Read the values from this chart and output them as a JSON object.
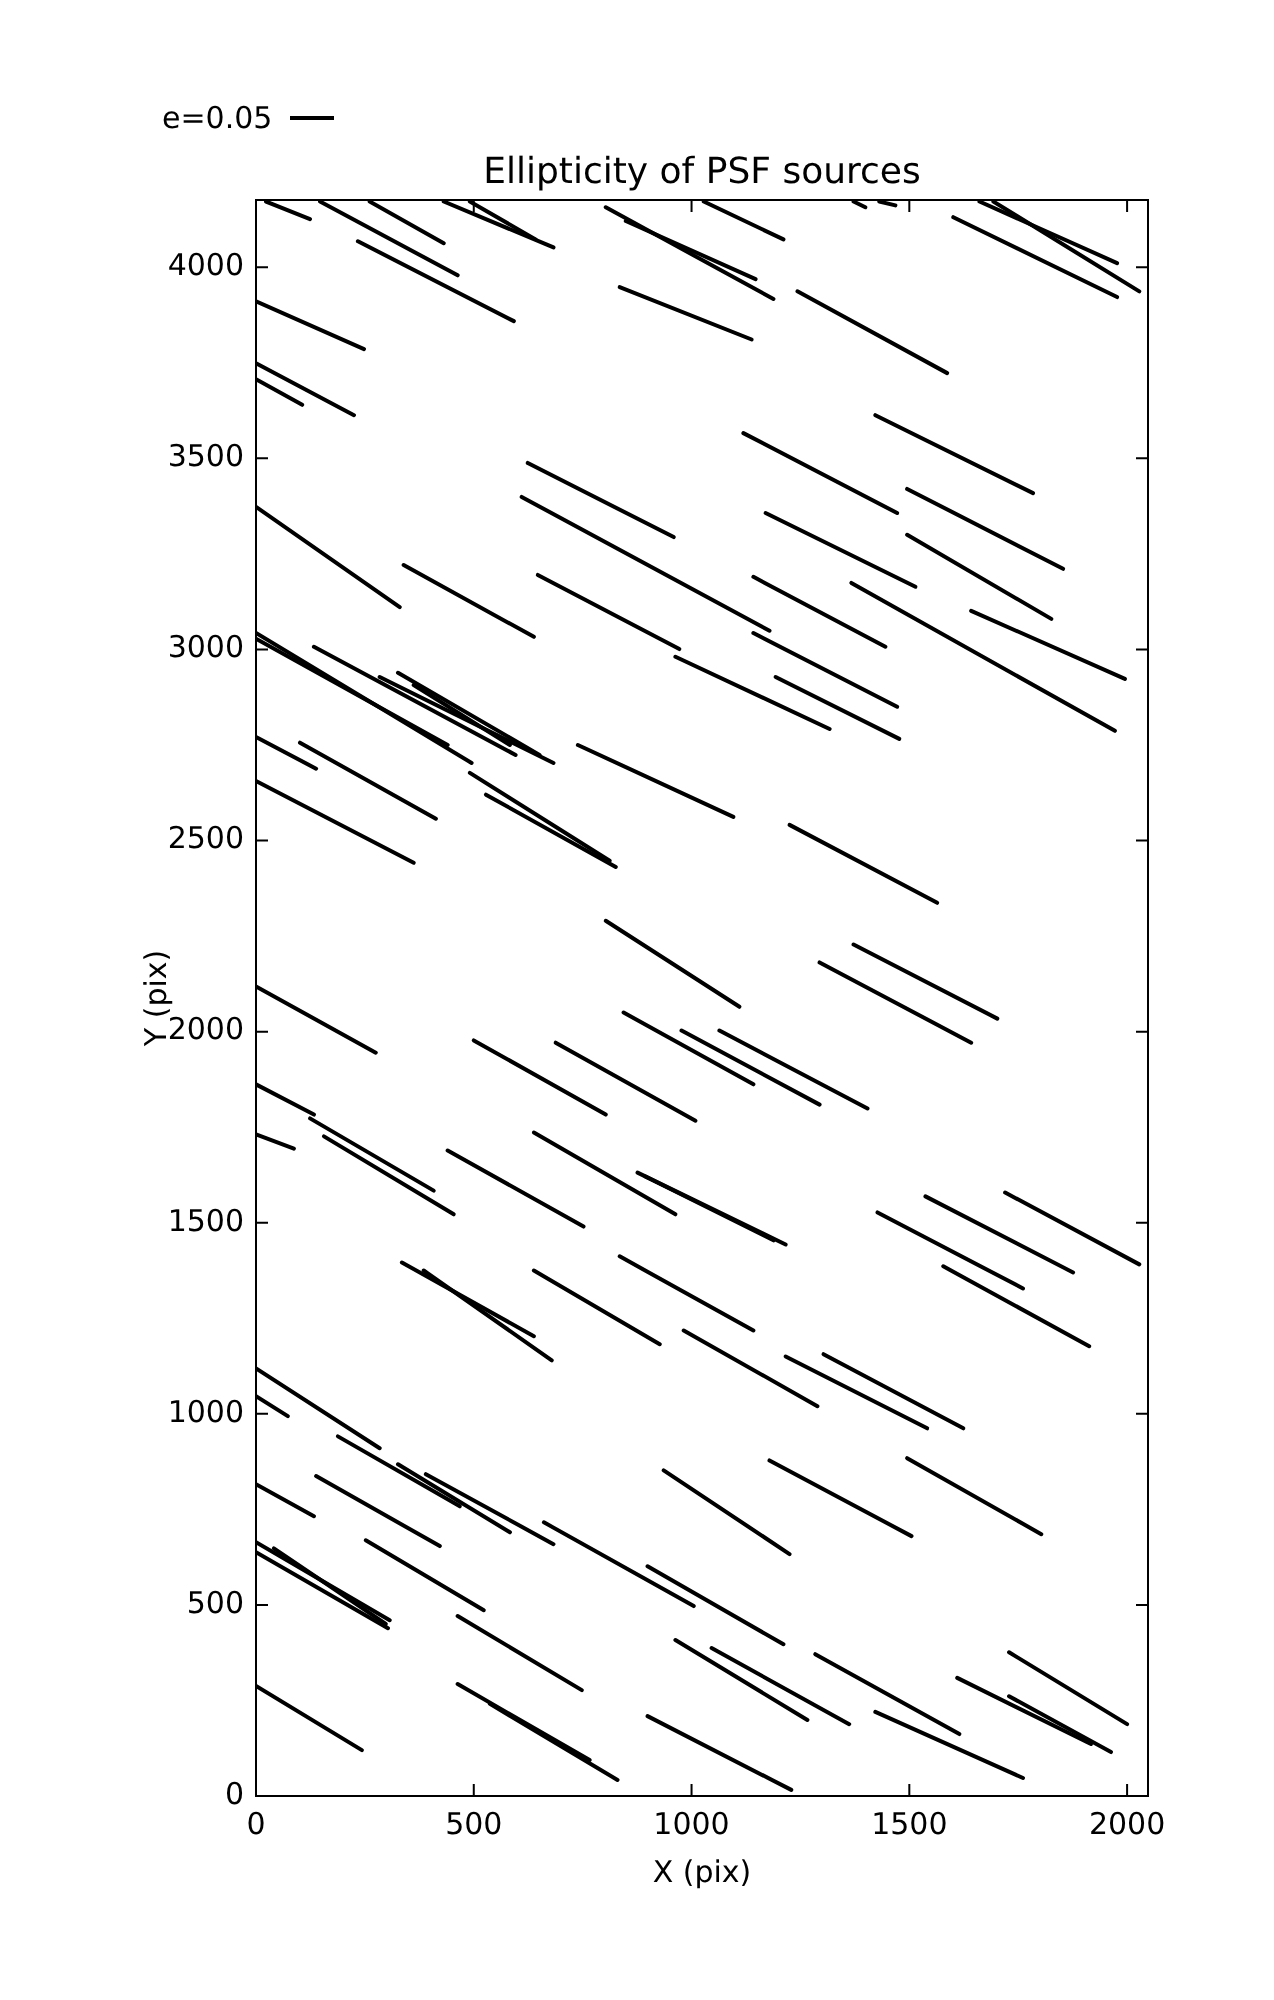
{
  "chart_data": {
    "type": "line",
    "title": "Ellipticity of PSF sources",
    "xlabel": "X (pix)",
    "ylabel": "Y (pix)",
    "xlim": [
      0,
      2048
    ],
    "ylim": [
      0,
      4176
    ],
    "xticks": [
      0,
      500,
      1000,
      1500,
      2000
    ],
    "yticks": [
      0,
      500,
      1000,
      1500,
      2000,
      2500,
      3000,
      3500,
      4000
    ],
    "marker": "none",
    "line_style": "solid",
    "annotations": [
      "e=0.05"
    ],
    "series": [
      {
        "color": "#000000",
        "x": [
          23,
          124
        ],
        "values": [
          4172,
          4126
        ]
      },
      {
        "color": "#000000",
        "x": [
          147,
          463
        ],
        "values": [
          4172,
          3979
        ]
      },
      {
        "color": "#000000",
        "x": [
          261,
          431
        ],
        "values": [
          4172,
          4063
        ]
      },
      {
        "color": "#000000",
        "x": [
          431,
          683
        ],
        "values": [
          4172,
          4052
        ]
      },
      {
        "color": "#000000",
        "x": [
          491,
          642
        ],
        "values": [
          4172,
          4073
        ]
      },
      {
        "color": "#000000",
        "x": [
          234,
          592
        ],
        "values": [
          4068,
          3859
        ]
      },
      {
        "color": "#000000",
        "x": [
          0,
          248
        ],
        "values": [
          3911,
          3786
        ]
      },
      {
        "color": "#000000",
        "x": [
          0,
          225
        ],
        "values": [
          3749,
          3613
        ]
      },
      {
        "color": "#000000",
        "x": [
          0,
          106
        ],
        "values": [
          3707,
          3640
        ]
      },
      {
        "color": "#000000",
        "x": [
          803,
          1188
        ],
        "values": [
          4157,
          3917
        ]
      },
      {
        "color": "#000000",
        "x": [
          849,
          1147
        ],
        "values": [
          4121,
          3969
        ]
      },
      {
        "color": "#000000",
        "x": [
          1028,
          1211
        ],
        "values": [
          4172,
          4073
        ]
      },
      {
        "color": "#000000",
        "x": [
          835,
          1138
        ],
        "values": [
          3948,
          3811
        ]
      },
      {
        "color": "#000000",
        "x": [
          1243,
          1587
        ],
        "values": [
          3937,
          3723
        ]
      },
      {
        "color": "#000000",
        "x": [
          1372,
          1399
        ],
        "values": [
          4172,
          4157
        ]
      },
      {
        "color": "#000000",
        "x": [
          1431,
          1468
        ],
        "values": [
          4172,
          4162
        ]
      },
      {
        "color": "#000000",
        "x": [
          1661,
          1977
        ],
        "values": [
          4172,
          4011
        ]
      },
      {
        "color": "#000000",
        "x": [
          1693,
          2028
        ],
        "values": [
          4172,
          3937
        ]
      },
      {
        "color": "#000000",
        "x": [
          1601,
          1977
        ],
        "values": [
          4131,
          3922
        ]
      },
      {
        "color": "#000000",
        "x": [
          1422,
          1784
        ],
        "values": [
          3613,
          3409
        ]
      },
      {
        "color": "#000000",
        "x": [
          1119,
          1472
        ],
        "values": [
          3566,
          3357
        ]
      },
      {
        "color": "#000000",
        "x": [
          624,
          959
        ],
        "values": [
          3488,
          3294
        ]
      },
      {
        "color": "#000000",
        "x": [
          0,
          330
        ],
        "values": [
          3373,
          3111
        ]
      },
      {
        "color": "#000000",
        "x": [
          610,
          1179
        ],
        "values": [
          3399,
          3049
        ]
      },
      {
        "color": "#000000",
        "x": [
          1495,
          1853
        ],
        "values": [
          3420,
          3211
        ]
      },
      {
        "color": "#000000",
        "x": [
          1170,
          1514
        ],
        "values": [
          3357,
          3164
        ]
      },
      {
        "color": "#000000",
        "x": [
          1495,
          1826
        ],
        "values": [
          3300,
          3080
        ]
      },
      {
        "color": "#000000",
        "x": [
          339,
          638
        ],
        "values": [
          3221,
          3033
        ]
      },
      {
        "color": "#000000",
        "x": [
          647,
          972
        ],
        "values": [
          3195,
          3001
        ]
      },
      {
        "color": "#000000",
        "x": [
          1142,
          1445
        ],
        "values": [
          3190,
          3007
        ]
      },
      {
        "color": "#000000",
        "x": [
          1367,
          1972
        ],
        "values": [
          3174,
          2787
        ]
      },
      {
        "color": "#000000",
        "x": [
          1642,
          1995
        ],
        "values": [
          3101,
          2923
        ]
      },
      {
        "color": "#000000",
        "x": [
          1142,
          1472
        ],
        "values": [
          3043,
          2850
        ]
      },
      {
        "color": "#000000",
        "x": [
          963,
          1317
        ],
        "values": [
          2981,
          2792
        ]
      },
      {
        "color": "#000000",
        "x": [
          1193,
          1477
        ],
        "values": [
          2928,
          2766
        ]
      },
      {
        "color": "#000000",
        "x": [
          0,
          495
        ],
        "values": [
          3043,
          2703
        ]
      },
      {
        "color": "#000000",
        "x": [
          0,
          440
        ],
        "values": [
          3028,
          2750
        ]
      },
      {
        "color": "#000000",
        "x": [
          133,
          596
        ],
        "values": [
          3007,
          2724
        ]
      },
      {
        "color": "#000000",
        "x": [
          284,
          683
        ],
        "values": [
          2928,
          2703
        ]
      },
      {
        "color": "#000000",
        "x": [
          326,
          651
        ],
        "values": [
          2939,
          2724
        ]
      },
      {
        "color": "#000000",
        "x": [
          362,
          583
        ],
        "values": [
          2907,
          2750
        ]
      },
      {
        "color": "#000000",
        "x": [
          491,
          812
        ],
        "values": [
          2677,
          2447
        ]
      },
      {
        "color": "#000000",
        "x": [
          528,
          826
        ],
        "values": [
          2620,
          2431
        ]
      },
      {
        "color": "#000000",
        "x": [
          739,
          1096
        ],
        "values": [
          2750,
          2562
        ]
      },
      {
        "color": "#000000",
        "x": [
          0,
          138
        ],
        "values": [
          2771,
          2688
        ]
      },
      {
        "color": "#000000",
        "x": [
          101,
          413
        ],
        "values": [
          2756,
          2557
        ]
      },
      {
        "color": "#000000",
        "x": [
          0,
          362
        ],
        "values": [
          2656,
          2442
        ]
      },
      {
        "color": "#000000",
        "x": [
          1225,
          1564
        ],
        "values": [
          2541,
          2337
        ]
      },
      {
        "color": "#000000",
        "x": [
          803,
          1110
        ],
        "values": [
          2290,
          2065
        ]
      },
      {
        "color": "#000000",
        "x": [
          1294,
          1642
        ],
        "values": [
          2181,
          1971
        ]
      },
      {
        "color": "#000000",
        "x": [
          1372,
          1702
        ],
        "values": [
          2228,
          2034
        ]
      },
      {
        "color": "#000000",
        "x": [
          0,
          275
        ],
        "values": [
          2118,
          1945
        ]
      },
      {
        "color": "#000000",
        "x": [
          500,
          803
        ],
        "values": [
          1977,
          1783
        ]
      },
      {
        "color": "#000000",
        "x": [
          688,
          1009
        ],
        "values": [
          1971,
          1767
        ]
      },
      {
        "color": "#000000",
        "x": [
          844,
          1142
        ],
        "values": [
          2050,
          1862
        ]
      },
      {
        "color": "#000000",
        "x": [
          977,
          1294
        ],
        "values": [
          2003,
          1809
        ]
      },
      {
        "color": "#000000",
        "x": [
          1064,
          1404
        ],
        "values": [
          2003,
          1799
        ]
      },
      {
        "color": "#000000",
        "x": [
          0,
          133
        ],
        "values": [
          1862,
          1783
        ]
      },
      {
        "color": "#000000",
        "x": [
          124,
          408
        ],
        "values": [
          1773,
          1584
        ]
      },
      {
        "color": "#000000",
        "x": [
          156,
          454
        ],
        "values": [
          1726,
          1522
        ]
      },
      {
        "color": "#000000",
        "x": [
          0,
          87
        ],
        "values": [
          1731,
          1694
        ]
      },
      {
        "color": "#000000",
        "x": [
          440,
          752
        ],
        "values": [
          1689,
          1490
        ]
      },
      {
        "color": "#000000",
        "x": [
          638,
          963
        ],
        "values": [
          1736,
          1522
        ]
      },
      {
        "color": "#000000",
        "x": [
          876,
          1216
        ],
        "values": [
          1631,
          1443
        ]
      },
      {
        "color": "#000000",
        "x": [
          894,
          1188
        ],
        "values": [
          1621,
          1454
        ]
      },
      {
        "color": "#000000",
        "x": [
          1427,
          1761
        ],
        "values": [
          1527,
          1328
        ]
      },
      {
        "color": "#000000",
        "x": [
          1537,
          1876
        ],
        "values": [
          1569,
          1370
        ]
      },
      {
        "color": "#000000",
        "x": [
          1720,
          2028
        ],
        "values": [
          1579,
          1391
        ]
      },
      {
        "color": "#000000",
        "x": [
          335,
          638
        ],
        "values": [
          1396,
          1203
        ]
      },
      {
        "color": "#000000",
        "x": [
          385,
          679
        ],
        "values": [
          1375,
          1140
        ]
      },
      {
        "color": "#000000",
        "x": [
          638,
          927
        ],
        "values": [
          1375,
          1182
        ]
      },
      {
        "color": "#000000",
        "x": [
          835,
          1142
        ],
        "values": [
          1412,
          1218
        ]
      },
      {
        "color": "#000000",
        "x": [
          1578,
          1913
        ],
        "values": [
          1386,
          1177
        ]
      },
      {
        "color": "#000000",
        "x": [
          982,
          1289
        ],
        "values": [
          1218,
          1020
        ]
      },
      {
        "color": "#000000",
        "x": [
          1216,
          1541
        ],
        "values": [
          1150,
          962
        ]
      },
      {
        "color": "#000000",
        "x": [
          1303,
          1624
        ],
        "values": [
          1156,
          962
        ]
      },
      {
        "color": "#000000",
        "x": [
          0,
          284
        ],
        "values": [
          1119,
          910
        ]
      },
      {
        "color": "#000000",
        "x": [
          0,
          73
        ],
        "values": [
          1046,
          994
        ]
      },
      {
        "color": "#000000",
        "x": [
          188,
          468
        ],
        "values": [
          941,
          758
        ]
      },
      {
        "color": "#000000",
        "x": [
          326,
          583
        ],
        "values": [
          868,
          690
        ]
      },
      {
        "color": "#000000",
        "x": [
          390,
          683
        ],
        "values": [
          842,
          659
        ]
      },
      {
        "color": "#000000",
        "x": [
          138,
          422
        ],
        "values": [
          837,
          654
        ]
      },
      {
        "color": "#000000",
        "x": [
          0,
          133
        ],
        "values": [
          816,
          732
        ]
      },
      {
        "color": "#000000",
        "x": [
          936,
          1225
        ],
        "values": [
          852,
          633
        ]
      },
      {
        "color": "#000000",
        "x": [
          1179,
          1505
        ],
        "values": [
          878,
          680
        ]
      },
      {
        "color": "#000000",
        "x": [
          1495,
          1803
        ],
        "values": [
          884,
          685
        ]
      },
      {
        "color": "#000000",
        "x": [
          252,
          523
        ],
        "values": [
          669,
          486
        ]
      },
      {
        "color": "#000000",
        "x": [
          661,
          1005
        ],
        "values": [
          716,
          497
        ]
      },
      {
        "color": "#000000",
        "x": [
          899,
          1211
        ],
        "values": [
          601,
          397
        ]
      },
      {
        "color": "#000000",
        "x": [
          0,
          307
        ],
        "values": [
          664,
          460
        ]
      },
      {
        "color": "#000000",
        "x": [
          0,
          303
        ],
        "values": [
          638,
          439
        ]
      },
      {
        "color": "#000000",
        "x": [
          41,
          298
        ],
        "values": [
          648,
          450
        ]
      },
      {
        "color": "#000000",
        "x": [
          463,
          748
        ],
        "values": [
          471,
          277
        ]
      },
      {
        "color": "#000000",
        "x": [
          0,
          243
        ],
        "values": [
          288,
          120
        ]
      },
      {
        "color": "#000000",
        "x": [
          463,
          766
        ],
        "values": [
          293,
          94
        ]
      },
      {
        "color": "#000000",
        "x": [
          537,
          830
        ],
        "values": [
          241,
          42
        ]
      },
      {
        "color": "#000000",
        "x": [
          899,
          1229
        ],
        "values": [
          209,
          16
        ]
      },
      {
        "color": "#000000",
        "x": [
          963,
          1266
        ],
        "values": [
          408,
          199
        ]
      },
      {
        "color": "#000000",
        "x": [
          1046,
          1362
        ],
        "values": [
          387,
          188
        ]
      },
      {
        "color": "#000000",
        "x": [
          1284,
          1615
        ],
        "values": [
          371,
          162
        ]
      },
      {
        "color": "#000000",
        "x": [
          1422,
          1761
        ],
        "values": [
          220,
          47
        ]
      },
      {
        "color": "#000000",
        "x": [
          1610,
          1917
        ],
        "values": [
          309,
          136
        ]
      },
      {
        "color": "#000000",
        "x": [
          1729,
          1963
        ],
        "values": [
          261,
          115
        ]
      },
      {
        "color": "#000000",
        "x": [
          1729,
          2000
        ],
        "values": [
          376,
          188
        ]
      }
    ]
  }
}
